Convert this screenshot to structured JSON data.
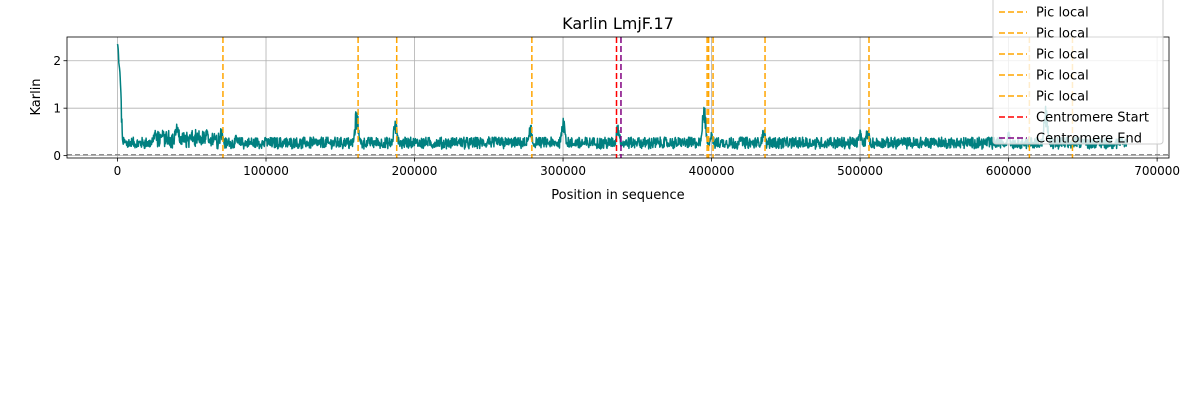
{
  "chart_data": {
    "type": "line",
    "title": "Karlin LmjF.17",
    "xlabel": "Position in sequence",
    "ylabel": "Karlin",
    "xlim": [
      -34000,
      708000
    ],
    "ylim": [
      -0.05,
      2.5
    ],
    "x_ticks": [
      0,
      100000,
      200000,
      300000,
      400000,
      500000,
      600000,
      700000
    ],
    "y_ticks": [
      0,
      1,
      2
    ],
    "grid": true,
    "legend_placement": "top-right",
    "series": [
      {
        "color": "#008080",
        "x_start": 0,
        "x_end": 680000,
        "x": [
          0,
          1000,
          2000,
          3000,
          5000,
          10000,
          20000,
          25000,
          30000,
          40000,
          50000,
          60000,
          70000,
          80000,
          100000,
          120000,
          150000,
          161000,
          170000,
          187000,
          200000,
          230000,
          250000,
          278000,
          300000,
          320000,
          337000,
          350000,
          380000,
          395000,
          400000,
          420000,
          435000,
          450000,
          480000,
          500000,
          505000,
          550000,
          600000,
          625000,
          650000,
          680000
        ],
        "y": [
          2.35,
          1.9,
          0.5,
          0.35,
          0.3,
          0.28,
          0.3,
          0.5,
          0.55,
          0.7,
          0.5,
          0.55,
          0.6,
          0.45,
          0.4,
          0.35,
          0.35,
          1.0,
          0.35,
          0.8,
          0.35,
          0.35,
          0.4,
          0.7,
          0.95,
          0.35,
          0.7,
          0.35,
          0.35,
          1.1,
          0.5,
          0.45,
          0.6,
          0.35,
          0.4,
          0.6,
          0.65,
          0.4,
          0.5,
          1.05,
          0.4,
          0.35
        ],
        "band": 0.28,
        "baseline": 0.25
      }
    ],
    "reference_line": {
      "y": 0.02,
      "color": "#808080",
      "style": "dashed"
    },
    "vlines": [
      {
        "label": "Pic local",
        "color": "#FFA500",
        "x": [
          71000,
          162000,
          188000,
          279000,
          397000,
          398000,
          401000,
          436000,
          506000,
          614000,
          643000
        ]
      },
      {
        "label": "Centromere Start",
        "color": "#FF0000",
        "x": [
          336000
        ]
      },
      {
        "label": "Centromere End",
        "color": "#800080",
        "x": [
          339000
        ]
      }
    ],
    "legend": {
      "entries": [
        {
          "label": "Pic local",
          "color": "#FFA500"
        },
        {
          "label": "Pic local",
          "color": "#FFA500"
        },
        {
          "label": "Pic local",
          "color": "#FFA500"
        },
        {
          "label": "Pic local",
          "color": "#FFA500"
        },
        {
          "label": "Pic local",
          "color": "#FFA500"
        },
        {
          "label": "Centromere Start",
          "color": "#FF0000"
        },
        {
          "label": "Centromere End",
          "color": "#800080"
        }
      ]
    }
  }
}
